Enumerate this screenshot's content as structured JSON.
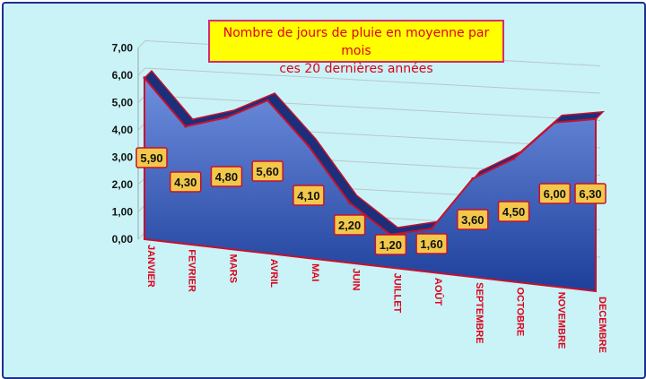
{
  "chart_data": {
    "type": "area",
    "title_line1": "Nombre de jours de pluie en moyenne par mois",
    "title_line2": "ces 20 dernières années",
    "categories": [
      "JANVIER",
      "FEVRIER",
      "MARS",
      "AVRIL",
      "MAI",
      "JUIN",
      "JUILLET",
      "AOÛT",
      "SEPTEMBRE",
      "OCTOBRE",
      "NOVEMBRE",
      "DECEMBRE"
    ],
    "values": [
      5.9,
      4.3,
      4.8,
      5.6,
      4.1,
      2.2,
      1.2,
      1.6,
      3.6,
      4.5,
      6.0,
      6.3
    ],
    "data_labels": [
      "5,90",
      "4,30",
      "4,80",
      "5,60",
      "4,10",
      "2,20",
      "1,20",
      "1,60",
      "3,60",
      "4,50",
      "6,00",
      "6,30"
    ],
    "yticks": [
      "0,00",
      "1,00",
      "2,00",
      "3,00",
      "4,00",
      "5,00",
      "6,00",
      "7,00"
    ],
    "ylim": [
      0,
      7
    ],
    "grid": true,
    "colors": {
      "area_top": "#6f8fdf",
      "area_bottom": "#1d3f9a",
      "outline": "#c8102e",
      "label_box": "#f2c84b",
      "background": "#c9f3f7"
    }
  }
}
